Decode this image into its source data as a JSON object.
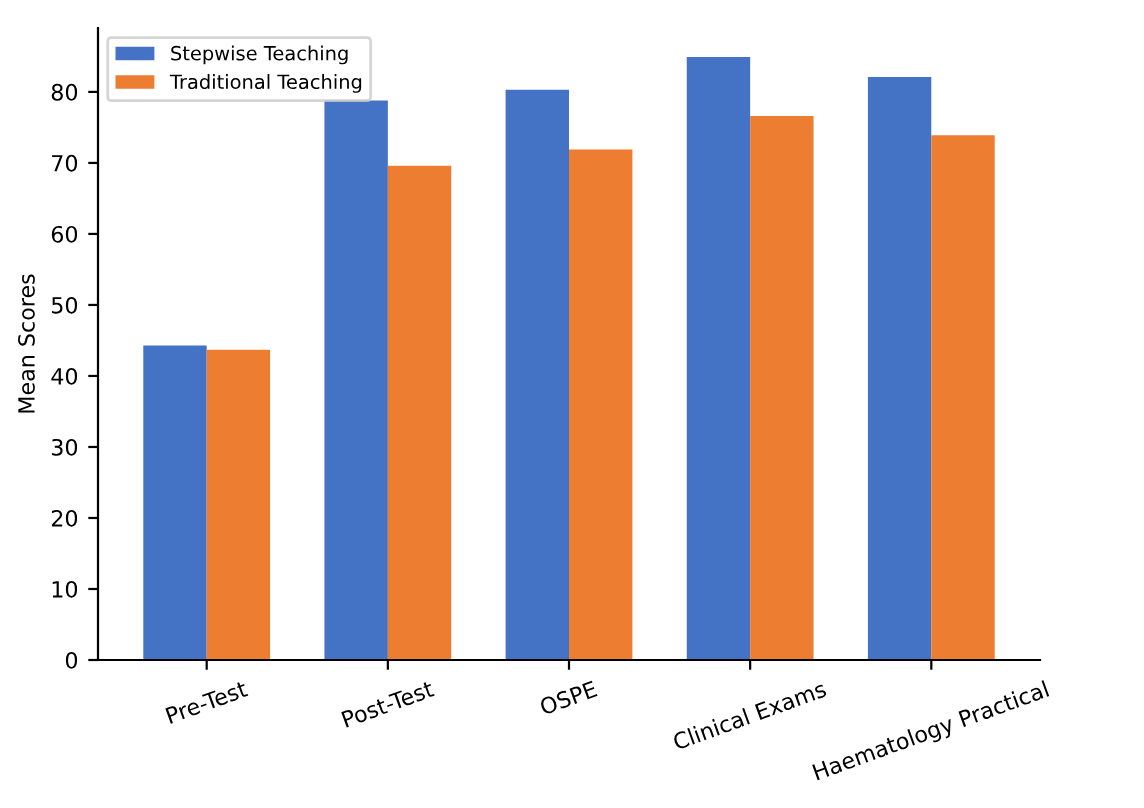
{
  "chart_data": {
    "type": "bar",
    "ylabel": "Mean Scores",
    "categories": [
      "Pre-Test",
      "Post-Test",
      "OSPE",
      "Clinical Exams",
      "Haematology Practical"
    ],
    "series": [
      {
        "name": "Stepwise Teaching",
        "color": "#4472c4",
        "values": [
          44.3,
          78.8,
          80.3,
          84.9,
          82.1
        ]
      },
      {
        "name": "Traditional Teaching",
        "color": "#ed7d31",
        "values": [
          43.7,
          69.6,
          71.9,
          76.6,
          73.9
        ]
      }
    ],
    "ylim": [
      0,
      89
    ],
    "yticks": [
      0,
      10,
      20,
      30,
      40,
      50,
      60,
      70,
      80
    ],
    "grid": false,
    "legend": "top left"
  }
}
